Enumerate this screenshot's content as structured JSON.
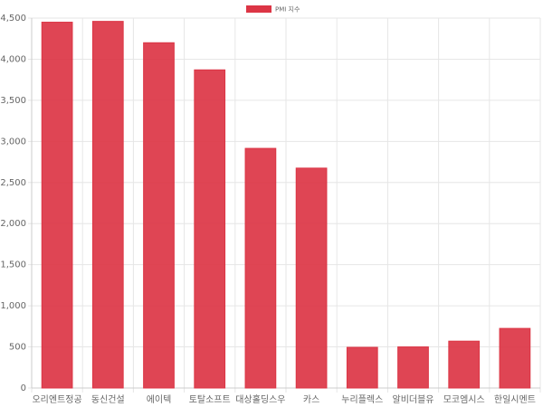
{
  "chart_data": {
    "type": "bar",
    "legend": "PMI 지수",
    "color": "#dc3545",
    "categories": [
      "오리엔트정공",
      "동신건설",
      "에이텍",
      "토탈소프트",
      "대상홀딩스우",
      "카스",
      "누리플렉스",
      "알비더블유",
      "모코엠시스",
      "한일시멘트"
    ],
    "values": [
      4450,
      4460,
      4200,
      3870,
      2915,
      2675,
      495,
      500,
      570,
      725
    ],
    "ylim": [
      0,
      4500
    ],
    "yticks": [
      0,
      500,
      {
        "value": 1000,
        "label": "1,000"
      },
      {
        "value": 1500,
        "label": "1,500"
      },
      {
        "value": 2000,
        "label": "2,000"
      },
      {
        "value": 2500,
        "label": "2,500"
      },
      {
        "value": 3000,
        "label": "3,000"
      },
      {
        "value": 3500,
        "label": "3,500"
      },
      {
        "value": 4000,
        "label": "4,000"
      },
      {
        "value": 4500,
        "label": "4,500"
      }
    ],
    "grid": true
  }
}
